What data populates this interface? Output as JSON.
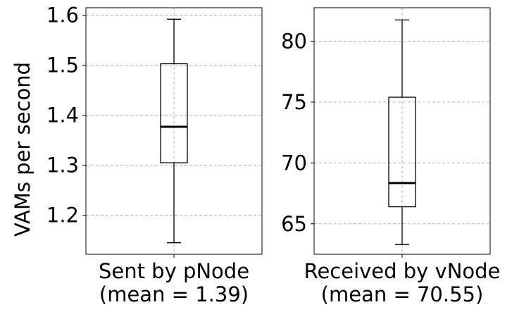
{
  "chart_data": [
    {
      "type": "box",
      "ylabel": "VAMs per second",
      "category": "Sent by pNode",
      "mean_label": "(mean = 1.39)",
      "ylim": [
        1.122,
        1.615
      ],
      "yticks": [
        1.2,
        1.3,
        1.4,
        1.5,
        1.6
      ],
      "ytick_labels": [
        "1.2",
        "1.3",
        "1.4",
        "1.5",
        "1.6"
      ],
      "grid": true,
      "box": {
        "whisker_low": 1.145,
        "q1": 1.305,
        "median": 1.377,
        "q3": 1.503,
        "whisker_high": 1.592
      }
    },
    {
      "type": "box",
      "category": "Received by vNode",
      "mean_label": "(mean = 70.55)",
      "ylim": [
        62.5,
        82.75
      ],
      "yticks": [
        65,
        70,
        75,
        80
      ],
      "ytick_labels": [
        "65",
        "70",
        "75",
        "80"
      ],
      "grid": true,
      "box": {
        "whisker_low": 63.3,
        "q1": 66.4,
        "median": 68.35,
        "q3": 75.4,
        "whisker_high": 81.75
      }
    }
  ]
}
